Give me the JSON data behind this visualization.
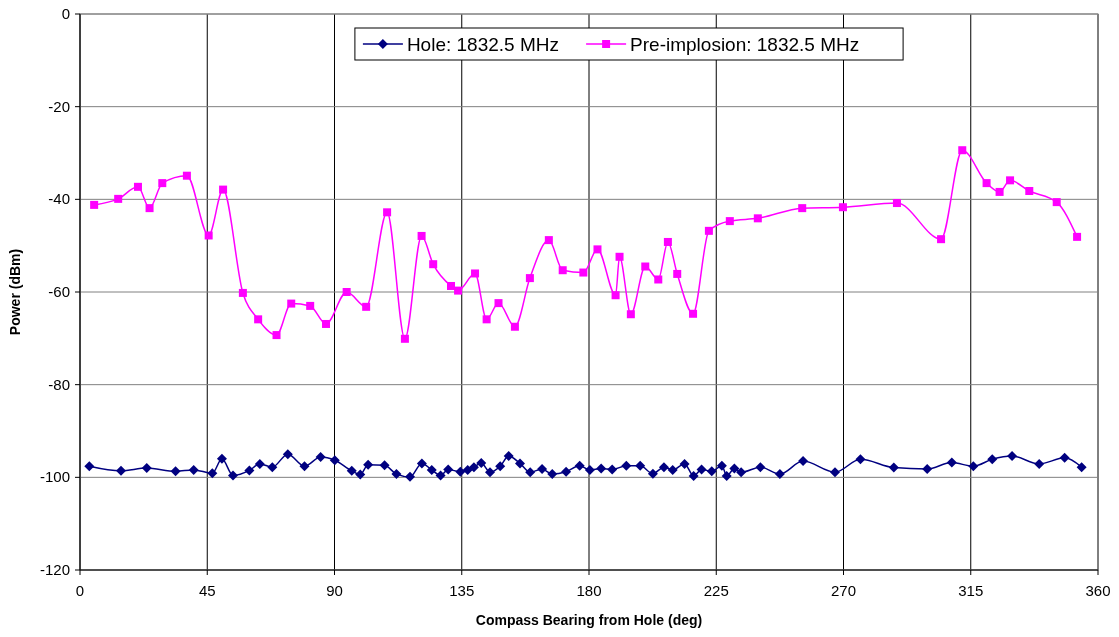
{
  "chart_data": {
    "type": "line",
    "xlabel": "Compass Bearing from Hole (deg)",
    "ylabel": "Power (dBm)",
    "xlim": [
      0,
      360
    ],
    "xticks": [
      0,
      45,
      90,
      135,
      180,
      225,
      270,
      315,
      360
    ],
    "ylim": [
      -120,
      0
    ],
    "yticks": [
      -120,
      -100,
      -80,
      -60,
      -40,
      -20,
      0
    ],
    "grid": true,
    "legend": "top",
    "series": [
      {
        "name": "Hole: 1832.5 MHz",
        "color": "#000080",
        "marker": "diamond",
        "x": [
          3.3,
          14.5,
          23.6,
          33.8,
          40.2,
          46.8,
          50.2,
          54.1,
          59.9,
          63.6,
          68,
          73.5,
          79.4,
          85.1,
          90.1,
          96.1,
          99.1,
          101.9,
          107.7,
          111.9,
          116.7,
          120.9,
          124.4,
          127.5,
          130.2,
          134.5,
          137.1,
          139.3,
          141.9,
          145,
          148.6,
          151.6,
          155.6,
          159.2,
          163.4,
          167,
          171.9,
          176.7,
          180.3,
          184.3,
          188.2,
          193.2,
          198.1,
          202.6,
          206.5,
          209.6,
          213.8,
          217,
          219.8,
          223.4,
          227,
          228.7,
          231.4,
          233.8,
          240.6,
          247.5,
          255.7,
          267,
          276,
          287.8,
          299.6,
          308.3,
          315.9,
          322.6,
          329.6,
          339.2,
          348.2,
          354.2
        ],
        "values": [
          -97.6,
          -98.6,
          -98,
          -98.7,
          -98.4,
          -99.1,
          -96,
          -99.6,
          -98.5,
          -97.1,
          -97.8,
          -95,
          -97.6,
          -95.6,
          -96.3,
          -98.6,
          -99.4,
          -97.3,
          -97.4,
          -99.3,
          -99.9,
          -97,
          -98.4,
          -99.6,
          -98.3,
          -98.8,
          -98.4,
          -97.8,
          -96.9,
          -98.9,
          -97.6,
          -95.4,
          -97,
          -98.9,
          -98.2,
          -99.3,
          -98.8,
          -97.5,
          -98.4,
          -98.1,
          -98.3,
          -97.5,
          -97.5,
          -99.2,
          -97.8,
          -98.4,
          -97.1,
          -99.7,
          -98.3,
          -98.7,
          -97.5,
          -99.7,
          -98.1,
          -98.9,
          -97.8,
          -99.3,
          -96.5,
          -98.9,
          -96.1,
          -97.9,
          -98.2,
          -96.8,
          -97.6,
          -96.1,
          -95.4,
          -97.1,
          -95.8,
          -97.8
        ]
      },
      {
        "name": "Pre-implosion: 1832.5 MHz",
        "color": "#ff00ff",
        "marker": "square",
        "x": [
          5,
          13.5,
          20.5,
          24.6,
          29.1,
          37.8,
          45.5,
          50.6,
          57.6,
          63,
          69.5,
          74.7,
          81.4,
          87,
          94.3,
          101.2,
          108.6,
          114.9,
          120.8,
          124.9,
          131.2,
          133.7,
          139.7,
          143.8,
          148,
          153.8,
          159.1,
          165.8,
          170.7,
          178,
          183,
          189.4,
          190.8,
          194.8,
          199.9,
          204.5,
          207.9,
          211.2,
          216.8,
          222.4,
          229.8,
          239.7,
          255.4,
          269.8,
          288.9,
          304.5,
          312,
          320.6,
          325.2,
          328.9,
          335.7,
          345.4,
          352.6
        ],
        "values": [
          -41.2,
          -39.9,
          -37.3,
          -41.9,
          -36.5,
          -34.9,
          -47.8,
          -37.9,
          -60.2,
          -65.9,
          -69.3,
          -62.5,
          -63,
          -66.9,
          -60,
          -63.2,
          -42.8,
          -70.1,
          -47.9,
          -54,
          -58.7,
          -59.7,
          -56,
          -65.9,
          -62.4,
          -67.5,
          -57,
          -48.8,
          -55.3,
          -55.8,
          -50.8,
          -60.7,
          -52.4,
          -64.8,
          -54.5,
          -57.3,
          -49.2,
          -56.1,
          -64.7,
          -46.8,
          -44.7,
          -44.1,
          -41.9,
          -41.7,
          -40.8,
          -48.6,
          -29.4,
          -36.5,
          -38.4,
          -35.9,
          -38.2,
          -40.6,
          -48.1
        ]
      }
    ]
  }
}
